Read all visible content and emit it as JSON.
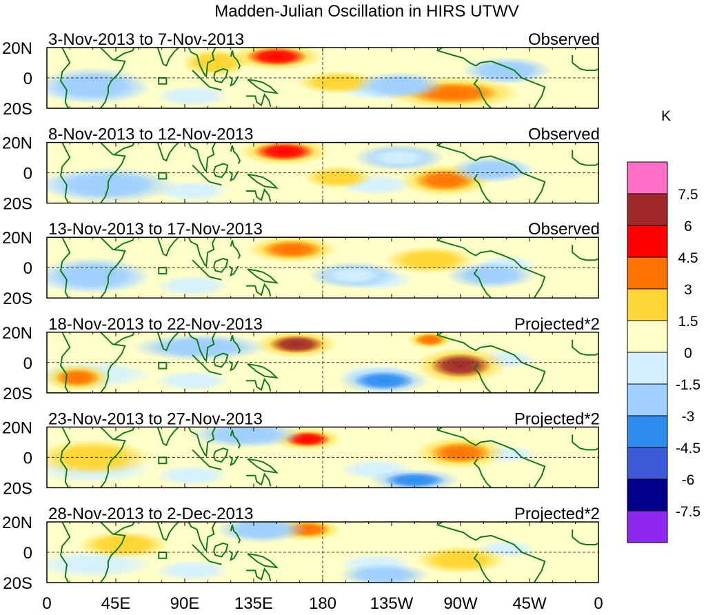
{
  "chart_data": {
    "type": "heatmap",
    "title": "Madden-Julian Oscillation in HIRS UTWV",
    "units_label": "K",
    "x_ticks": [
      "0",
      "45E",
      "90E",
      "135E",
      "180",
      "135W",
      "90W",
      "45W",
      "0"
    ],
    "y_ticks": [
      "20N",
      "0",
      "20S"
    ],
    "lon_range": [
      0,
      360
    ],
    "lat_range": [
      -20,
      20
    ],
    "colorbar": {
      "labels": [
        "7.5",
        "6",
        "4.5",
        "3",
        "1.5",
        "0",
        "-1.5",
        "-3",
        "-4.5",
        "-6",
        "-7.5"
      ],
      "colors": [
        "#ff6ec7",
        "#a0282a",
        "#ff0000",
        "#ff7300",
        "#ffd633",
        "#ffffc8",
        "#d2f0ff",
        "#a0d0ff",
        "#2d8cf0",
        "#3c5ad7",
        "#00008c",
        "#8c28f0"
      ]
    },
    "panels": [
      {
        "date_range": "3-Nov-2013 to 7-Nov-2013",
        "label": "Observed",
        "anomalies": [
          {
            "lon": 150,
            "lat": 14,
            "value": 5,
            "rlon": 20,
            "rlat": 6
          },
          {
            "lon": 265,
            "lat": -10,
            "value": 4,
            "rlon": 30,
            "rlat": 7
          },
          {
            "lon": 190,
            "lat": -3,
            "value": 2.5,
            "rlon": 18,
            "rlat": 5
          },
          {
            "lon": 110,
            "lat": 10,
            "value": 2,
            "rlon": 15,
            "rlat": 6
          },
          {
            "lon": 30,
            "lat": -5,
            "value": -2,
            "rlon": 25,
            "rlat": 8
          },
          {
            "lon": 230,
            "lat": -5,
            "value": -2,
            "rlon": 20,
            "rlat": 6
          },
          {
            "lon": 300,
            "lat": 5,
            "value": -2,
            "rlon": 20,
            "rlat": 6
          }
        ]
      },
      {
        "date_range": "8-Nov-2013 to 12-Nov-2013",
        "label": "Observed",
        "anomalies": [
          {
            "lon": 155,
            "lat": 14,
            "value": 5,
            "rlon": 20,
            "rlat": 6
          },
          {
            "lon": 260,
            "lat": -5,
            "value": 3,
            "rlon": 20,
            "rlat": 7
          },
          {
            "lon": 190,
            "lat": -3,
            "value": 2,
            "rlon": 15,
            "rlat": 5
          },
          {
            "lon": 40,
            "lat": -8,
            "value": -2,
            "rlon": 30,
            "rlat": 8
          },
          {
            "lon": 290,
            "lat": 2,
            "value": -2,
            "rlon": 18,
            "rlat": 6
          },
          {
            "lon": 230,
            "lat": 10,
            "value": -1.5,
            "rlon": 20,
            "rlat": 6
          }
        ]
      },
      {
        "date_range": "13-Nov-2013 to 17-Nov-2013",
        "label": "Observed",
        "anomalies": [
          {
            "lon": 160,
            "lat": 12,
            "value": 4,
            "rlon": 20,
            "rlat": 6
          },
          {
            "lon": 250,
            "lat": 5,
            "value": 2,
            "rlon": 20,
            "rlat": 6
          },
          {
            "lon": 30,
            "lat": -5,
            "value": -2,
            "rlon": 25,
            "rlat": 8
          },
          {
            "lon": 290,
            "lat": -5,
            "value": -2,
            "rlon": 20,
            "rlat": 6
          },
          {
            "lon": 200,
            "lat": -5,
            "value": -1.5,
            "rlon": 20,
            "rlat": 6
          }
        ]
      },
      {
        "date_range": "18-Nov-2013 to 22-Nov-2013",
        "label": "Projected*2",
        "anomalies": [
          {
            "lon": 163,
            "lat": 12,
            "value": 7,
            "rlon": 18,
            "rlat": 6
          },
          {
            "lon": 270,
            "lat": -2,
            "value": 6,
            "rlon": 20,
            "rlat": 8
          },
          {
            "lon": 100,
            "lat": 10,
            "value": -3,
            "rlon": 30,
            "rlat": 6
          },
          {
            "lon": 220,
            "lat": -12,
            "value": -4,
            "rlon": 20,
            "rlat": 6
          },
          {
            "lon": 20,
            "lat": -10,
            "value": 3,
            "rlon": 15,
            "rlat": 6
          },
          {
            "lon": 250,
            "lat": 15,
            "value": 4,
            "rlon": 10,
            "rlat": 4
          }
        ]
      },
      {
        "date_range": "23-Nov-2013 to 27-Nov-2013",
        "label": "Projected*2",
        "anomalies": [
          {
            "lon": 170,
            "lat": 12,
            "value": 5,
            "rlon": 15,
            "rlat": 5
          },
          {
            "lon": 130,
            "lat": 15,
            "value": -3,
            "rlon": 25,
            "rlat": 6
          },
          {
            "lon": 270,
            "lat": 3,
            "value": 4,
            "rlon": 20,
            "rlat": 7
          },
          {
            "lon": 240,
            "lat": -15,
            "value": -4,
            "rlon": 20,
            "rlat": 5
          },
          {
            "lon": 30,
            "lat": 0,
            "value": 2,
            "rlon": 25,
            "rlat": 8
          }
        ]
      },
      {
        "date_range": "28-Nov-2013 to 2-Dec-2013",
        "label": "Projected*2",
        "anomalies": [
          {
            "lon": 170,
            "lat": 15,
            "value": 4,
            "rlon": 15,
            "rlat": 5
          },
          {
            "lon": 140,
            "lat": 15,
            "value": -2.5,
            "rlon": 20,
            "rlat": 6
          },
          {
            "lon": 220,
            "lat": -15,
            "value": -3,
            "rlon": 20,
            "rlat": 5
          },
          {
            "lon": 270,
            "lat": -5,
            "value": 2,
            "rlon": 20,
            "rlat": 6
          },
          {
            "lon": 50,
            "lat": 5,
            "value": 2,
            "rlon": 20,
            "rlat": 6
          }
        ]
      }
    ]
  }
}
